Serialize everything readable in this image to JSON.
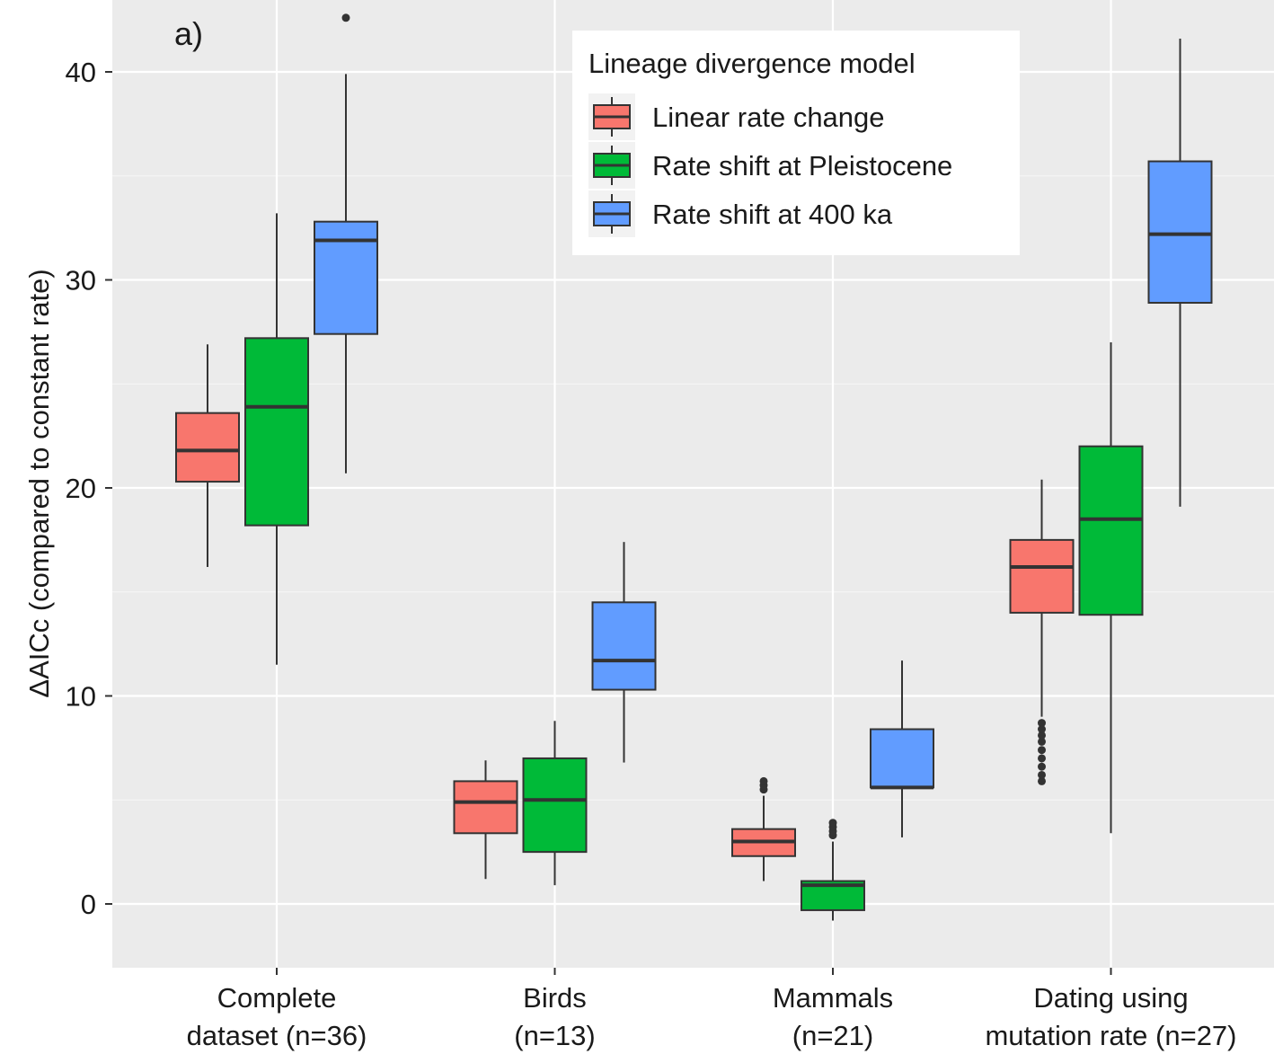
{
  "chart_data": {
    "type": "boxplot",
    "panel_label": "a)",
    "ylabel": "ΔAICc (compared to constant rate)",
    "xlabel": "",
    "ylim": [
      -3,
      44
    ],
    "yticks": [
      0,
      10,
      20,
      30,
      40
    ],
    "grid": true,
    "legend": {
      "title": "Lineage divergence model",
      "position": "top-right",
      "entries": [
        "Linear rate change",
        "Rate shift at Pleistocene",
        "Rate shift at 400 ka"
      ]
    },
    "categories": [
      [
        "Complete",
        "dataset (n=36)"
      ],
      [
        "Birds",
        "(n=13)"
      ],
      [
        "Mammals",
        "(n=21)"
      ],
      [
        "Dating using",
        "mutation rate (n=27)"
      ]
    ],
    "series": [
      {
        "name": "Linear rate change",
        "color": "#F8766D",
        "boxes": [
          {
            "min": 16.2,
            "q1": 20.3,
            "median": 21.8,
            "q3": 23.6,
            "max": 26.9,
            "outliers": []
          },
          {
            "min": 1.2,
            "q1": 3.4,
            "median": 4.9,
            "q3": 5.9,
            "max": 6.9,
            "outliers": []
          },
          {
            "min": 1.1,
            "q1": 2.3,
            "median": 3.0,
            "q3": 3.6,
            "max": 5.2,
            "outliers": [
              5.5,
              5.7,
              5.9
            ]
          },
          {
            "min": 9.0,
            "q1": 14.0,
            "median": 16.2,
            "q3": 17.5,
            "max": 20.4,
            "outliers": [
              5.9,
              6.2,
              6.6,
              7.0,
              7.4,
              7.8,
              8.1,
              8.4,
              8.7
            ]
          }
        ]
      },
      {
        "name": "Rate shift at Pleistocene",
        "color": "#00BA38",
        "boxes": [
          {
            "min": 11.5,
            "q1": 18.2,
            "median": 23.9,
            "q3": 27.2,
            "max": 33.2,
            "outliers": []
          },
          {
            "min": 0.9,
            "q1": 2.5,
            "median": 5.0,
            "q3": 7.0,
            "max": 8.8,
            "outliers": []
          },
          {
            "min": -0.8,
            "q1": -0.3,
            "median": 0.9,
            "q3": 1.1,
            "max": 3.0,
            "outliers": [
              3.3,
              3.5,
              3.7,
              3.9
            ]
          },
          {
            "min": 3.4,
            "q1": 13.9,
            "median": 18.5,
            "q3": 22.0,
            "max": 27.0,
            "outliers": []
          }
        ]
      },
      {
        "name": "Rate shift at 400 ka",
        "color": "#619CFF",
        "boxes": [
          {
            "min": 20.7,
            "q1": 27.4,
            "median": 31.9,
            "q3": 32.8,
            "max": 39.9,
            "outliers": [
              42.6
            ]
          },
          {
            "min": 6.8,
            "q1": 10.3,
            "median": 11.7,
            "q3": 14.5,
            "max": 17.4,
            "outliers": []
          },
          {
            "min": 3.2,
            "q1": 5.6,
            "median": 5.6,
            "q3": 8.4,
            "max": 11.7,
            "outliers": []
          },
          {
            "min": 19.1,
            "q1": 28.9,
            "median": 32.2,
            "q3": 35.7,
            "max": 41.6,
            "outliers": []
          }
        ]
      }
    ]
  }
}
